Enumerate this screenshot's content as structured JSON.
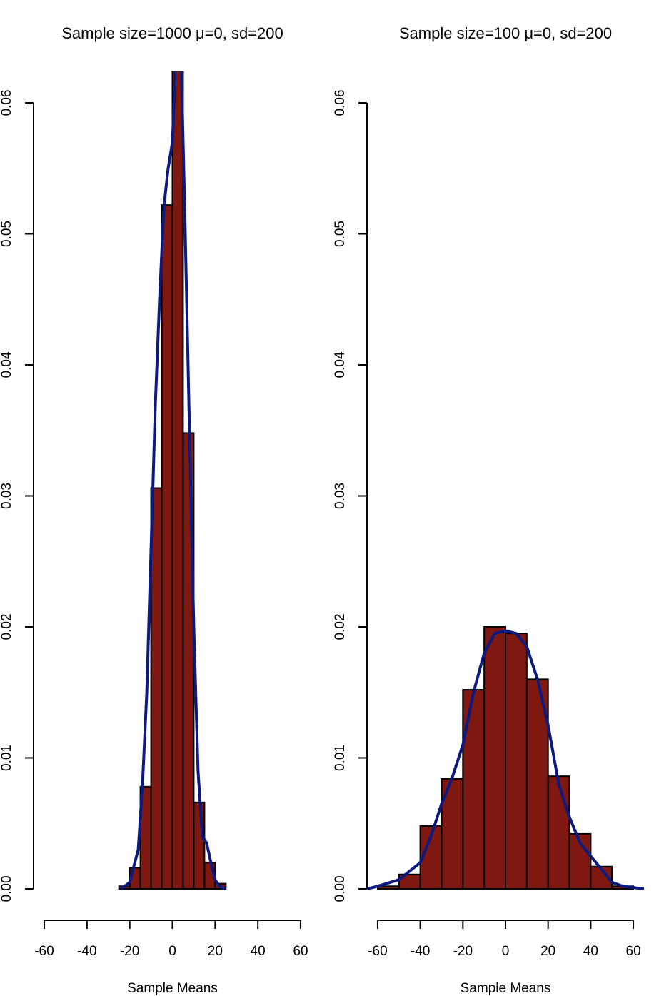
{
  "chart_data": [
    {
      "type": "histogram",
      "title": "Sample size=1000 μ=0, sd=200",
      "xlabel": "Sample Means",
      "bins": [
        -25,
        -20,
        -15,
        -10,
        -5,
        0,
        5,
        10,
        15,
        20,
        25
      ],
      "values": [
        0.0002,
        0.0016,
        0.0078,
        0.0306,
        0.0522,
        0.0638,
        0.0348,
        0.0066,
        0.002,
        0.0004
      ],
      "color": "#7f1810",
      "density": {
        "color": "#0c1a80",
        "x": [
          -24,
          -20,
          -16,
          -14,
          -12,
          -10,
          -8,
          -6,
          -4,
          -2,
          0,
          2,
          4,
          6,
          8,
          10,
          12,
          14,
          16,
          18,
          20,
          22,
          25
        ],
        "values": [
          0,
          0.0005,
          0.003,
          0.008,
          0.015,
          0.026,
          0.037,
          0.045,
          0.052,
          0.055,
          0.057,
          0.065,
          0.064,
          0.05,
          0.035,
          0.02,
          0.009,
          0.004,
          0.0035,
          0.002,
          0.0007,
          0.0002,
          0
        ]
      },
      "xlim": [
        -65,
        65
      ],
      "ylim": [
        -0.0024,
        0.0624
      ],
      "xticks": [
        -60,
        -40,
        -20,
        0,
        20,
        40,
        60
      ],
      "yticks": [
        {
          "value": 0,
          "label": "0.00"
        },
        {
          "value": 0.01,
          "label": "0.01"
        },
        {
          "value": 0.02,
          "label": "0.02"
        },
        {
          "value": 0.03,
          "label": "0.03"
        },
        {
          "value": 0.04,
          "label": "0.04"
        },
        {
          "value": 0.05,
          "label": "0.05"
        },
        {
          "value": 0.06,
          "label": "0.06"
        }
      ]
    },
    {
      "type": "histogram",
      "title": "Sample size=100 μ=0, sd=200",
      "xlabel": "Sample Means",
      "bins": [
        -60,
        -50,
        -40,
        -30,
        -20,
        -10,
        0,
        10,
        20,
        30,
        40,
        50,
        60
      ],
      "values": [
        0.0002,
        0.0011,
        0.0048,
        0.0084,
        0.0152,
        0.02,
        0.0195,
        0.016,
        0.0086,
        0.0042,
        0.0017,
        0.0002
      ],
      "color": "#7f1810",
      "density": {
        "color": "#0c1a80",
        "x": [
          -65,
          -60,
          -50,
          -40,
          -35,
          -30,
          -25,
          -20,
          -15,
          -10,
          -5,
          0,
          5,
          10,
          15,
          20,
          25,
          30,
          35,
          40,
          45,
          50,
          55,
          60,
          65
        ],
        "values": [
          0,
          0.0002,
          0.0007,
          0.002,
          0.004,
          0.0065,
          0.0085,
          0.011,
          0.015,
          0.018,
          0.0195,
          0.0197,
          0.0195,
          0.0185,
          0.016,
          0.0125,
          0.008,
          0.0055,
          0.0035,
          0.0025,
          0.0015,
          0.0005,
          0.0002,
          0.0001,
          0
        ]
      },
      "xlim": [
        -65,
        65
      ],
      "ylim": [
        -0.0024,
        0.0624
      ],
      "xticks": [
        -60,
        -40,
        -20,
        0,
        20,
        40,
        60
      ],
      "yticks": [
        {
          "value": 0,
          "label": "0.00"
        },
        {
          "value": 0.01,
          "label": "0.01"
        },
        {
          "value": 0.02,
          "label": "0.02"
        },
        {
          "value": 0.03,
          "label": "0.03"
        },
        {
          "value": 0.04,
          "label": "0.04"
        },
        {
          "value": 0.05,
          "label": "0.05"
        },
        {
          "value": 0.06,
          "label": "0.06"
        }
      ]
    }
  ]
}
